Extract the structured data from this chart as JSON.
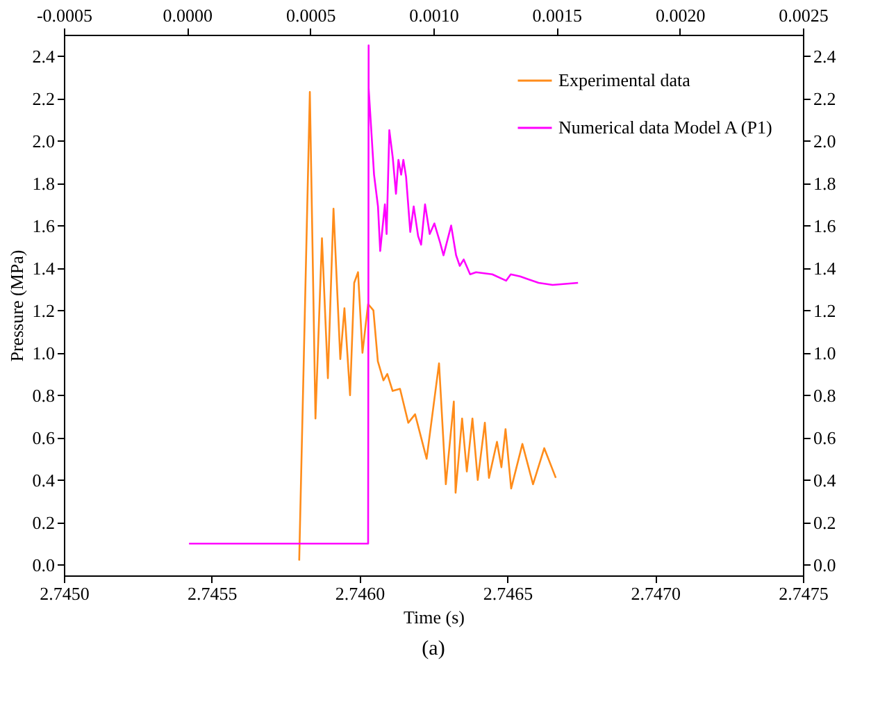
{
  "chart_data": {
    "type": "line",
    "xlabel": "Time (s)",
    "ylabel": "Pressure (MPa)",
    "annotations": [
      "(a)"
    ],
    "xlim": [
      2.745,
      2.7475
    ],
    "xticks": [
      {
        "value": 2.745,
        "label": "2.7450"
      },
      {
        "value": 2.7455,
        "label": "2.7455"
      },
      {
        "value": 2.746,
        "label": "2.7460"
      },
      {
        "value": 2.7465,
        "label": "2.7465"
      },
      {
        "value": 2.747,
        "label": "2.7470"
      },
      {
        "value": 2.7475,
        "label": "2.7475"
      }
    ],
    "x2lim": [
      -0.0005,
      0.0025
    ],
    "x2ticks": [
      {
        "value": -0.0005,
        "label": "-0.0005"
      },
      {
        "value": 0,
        "label": "0.0000"
      },
      {
        "value": 0.0005,
        "label": "0.0005"
      },
      {
        "value": 0.001,
        "label": "0.0010"
      },
      {
        "value": 0.0015,
        "label": "0.0015"
      },
      {
        "value": 0.002,
        "label": "0.0020"
      },
      {
        "value": 0.0025,
        "label": "0.0025"
      }
    ],
    "ylim": [
      -0.05,
      2.5
    ],
    "yticks": [
      {
        "value": 0,
        "label": "0.0"
      },
      0.2,
      0.4,
      0.6,
      0.8,
      {
        "value": 1,
        "label": "1.0"
      },
      1.2,
      1.4,
      1.6,
      1.8,
      {
        "value": 2,
        "label": "2.0"
      },
      2.2,
      2.4
    ],
    "y2lim": [
      -0.05,
      2.5
    ],
    "y2ticks": [
      {
        "value": 0,
        "label": "0.0"
      },
      0.2,
      0.4,
      0.6,
      0.8,
      {
        "value": 1,
        "label": "1.0"
      },
      1.2,
      1.4,
      1.6,
      1.8,
      {
        "value": 2,
        "label": "2.0"
      },
      2.2,
      2.4
    ],
    "grid": false,
    "legend": "top right",
    "marker": "none",
    "line_style": "solid",
    "series": [
      {
        "name": "Experimental data",
        "color": "#ff8c1a",
        "x": [
          2.745796,
          2.745832,
          2.745851,
          2.745873,
          2.745893,
          2.745912,
          2.745935,
          2.745949,
          2.745968,
          2.745982,
          2.745995,
          2.74601,
          2.746029,
          2.746047,
          2.746062,
          2.746081,
          2.746094,
          2.746112,
          2.746137,
          2.746165,
          2.746188,
          2.746227,
          2.746269,
          2.746292,
          2.746319,
          2.746325,
          2.746347,
          2.746363,
          2.746382,
          2.7464,
          2.746424,
          2.746438,
          2.746465,
          2.74648,
          2.746494,
          2.746513,
          2.746551,
          2.746587,
          2.746625,
          2.746664
        ],
        "values": [
          0.02,
          2.23,
          0.69,
          1.54,
          0.88,
          1.68,
          0.97,
          1.21,
          0.8,
          1.33,
          1.38,
          1.0,
          1.23,
          1.2,
          0.96,
          0.87,
          0.9,
          0.82,
          0.83,
          0.67,
          0.71,
          0.5,
          0.95,
          0.38,
          0.77,
          0.34,
          0.69,
          0.44,
          0.69,
          0.4,
          0.67,
          0.41,
          0.58,
          0.46,
          0.64,
          0.36,
          0.57,
          0.38,
          0.55,
          0.41
        ]
      },
      {
        "name": "Numerical data Model A (P1)",
        "color": "#ff00ff",
        "axis": "x2",
        "x": [
          8e-06,
          0.000735,
          0.000737,
          0.000737,
          0.000759,
          0.000775,
          0.000784,
          0.000803,
          0.00081,
          0.000821,
          0.000835,
          0.000848,
          0.000858,
          0.000869,
          0.000878,
          0.000889,
          0.000906,
          0.00092,
          0.000938,
          0.00095,
          0.000966,
          0.000985,
          0.001004,
          0.001027,
          0.001041,
          0.001072,
          0.001092,
          0.001107,
          0.001123,
          0.001149,
          0.001173,
          0.001239,
          0.001295,
          0.001314,
          0.001352,
          0.001427,
          0.001484,
          0.001587
        ],
        "values": [
          0.1,
          0.1,
          2.45,
          2.25,
          1.84,
          1.69,
          1.48,
          1.7,
          1.56,
          2.05,
          1.92,
          1.75,
          1.91,
          1.84,
          1.91,
          1.83,
          1.57,
          1.69,
          1.55,
          1.51,
          1.7,
          1.56,
          1.61,
          1.52,
          1.46,
          1.6,
          1.46,
          1.41,
          1.44,
          1.37,
          1.38,
          1.37,
          1.34,
          1.37,
          1.36,
          1.33,
          1.32,
          1.33
        ]
      }
    ]
  }
}
